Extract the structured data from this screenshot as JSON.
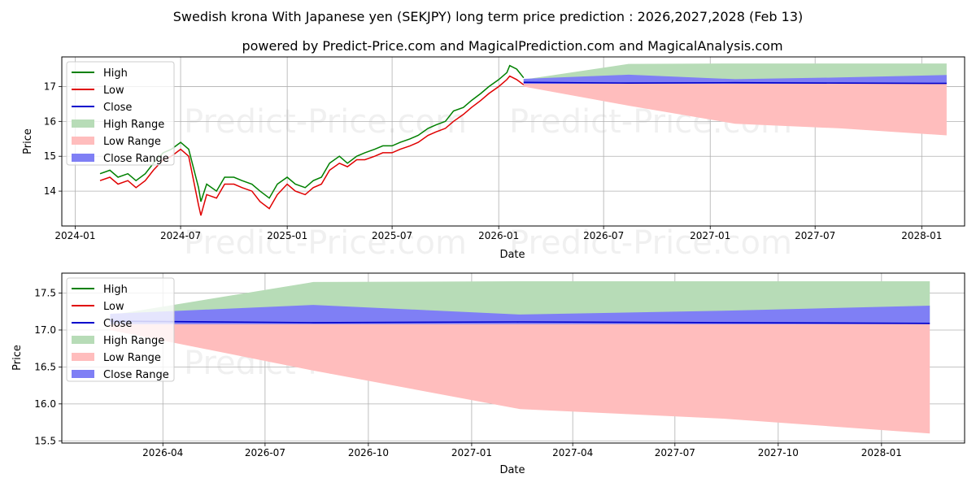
{
  "title": "Swedish krona With Japanese yen (SEKJPY) long term price prediction : 2026,2027,2028 (Feb 13)",
  "subtitle": "powered by Predict-Price.com and MagicalPrediction.com and MagicalAnalysis.com",
  "watermark": "Predict-Price.com",
  "colors": {
    "high": "#008000",
    "low": "#e00000",
    "close": "#0000cc",
    "high_range": "#b7dcb7",
    "low_range": "#ffbdbd",
    "close_range": "#7f7ff5"
  },
  "chart_data": [
    {
      "type": "line",
      "name": "history-and-forecast",
      "xlabel": "Date",
      "ylabel": "Price",
      "xlim": [
        "2023-12-09",
        "2028-03-15"
      ],
      "ylim": [
        13.0,
        17.85
      ],
      "x_ticks": [
        "2024-01",
        "2024-07",
        "2025-01",
        "2025-07",
        "2026-01",
        "2026-07",
        "2027-01",
        "2027-07",
        "2028-01"
      ],
      "x_tick_dates": [
        "2024-01-01",
        "2024-07-01",
        "2025-01-01",
        "2025-07-01",
        "2026-01-01",
        "2026-07-01",
        "2027-01-01",
        "2027-07-01",
        "2028-01-01"
      ],
      "y_ticks": [
        14,
        15,
        16,
        17
      ],
      "grid": true,
      "legend": {
        "position": "top-left",
        "entries": [
          "High",
          "Low",
          "Close",
          "High Range",
          "Low Range",
          "Close Range"
        ]
      },
      "history": {
        "dates": [
          "2024-02-13",
          "2024-03-01",
          "2024-03-15",
          "2024-04-01",
          "2024-04-15",
          "2024-05-01",
          "2024-05-15",
          "2024-06-01",
          "2024-06-15",
          "2024-07-01",
          "2024-07-15",
          "2024-08-01",
          "2024-08-05",
          "2024-08-15",
          "2024-09-01",
          "2024-09-15",
          "2024-10-01",
          "2024-10-15",
          "2024-11-01",
          "2024-11-15",
          "2024-12-01",
          "2024-12-15",
          "2025-01-01",
          "2025-01-15",
          "2025-02-01",
          "2025-02-15",
          "2025-03-01",
          "2025-03-15",
          "2025-04-01",
          "2025-04-15",
          "2025-05-01",
          "2025-05-15",
          "2025-06-01",
          "2025-06-15",
          "2025-07-01",
          "2025-07-15",
          "2025-08-01",
          "2025-08-15",
          "2025-09-01",
          "2025-09-15",
          "2025-10-01",
          "2025-10-15",
          "2025-11-01",
          "2025-11-15",
          "2025-12-01",
          "2025-12-15",
          "2026-01-01",
          "2026-01-15",
          "2026-01-20",
          "2026-02-01",
          "2026-02-13"
        ],
        "high": [
          14.5,
          14.6,
          14.4,
          14.5,
          14.3,
          14.5,
          14.8,
          15.1,
          15.2,
          15.4,
          15.2,
          14.1,
          13.7,
          14.2,
          14.0,
          14.4,
          14.4,
          14.3,
          14.2,
          14.0,
          13.8,
          14.2,
          14.4,
          14.2,
          14.1,
          14.3,
          14.4,
          14.8,
          15.0,
          14.8,
          15.0,
          15.1,
          15.2,
          15.3,
          15.3,
          15.4,
          15.5,
          15.6,
          15.8,
          15.9,
          16.0,
          16.3,
          16.4,
          16.6,
          16.8,
          17.0,
          17.2,
          17.4,
          17.6,
          17.5,
          17.25
        ],
        "low": [
          14.3,
          14.4,
          14.2,
          14.3,
          14.1,
          14.3,
          14.6,
          14.9,
          15.0,
          15.2,
          15.0,
          13.6,
          13.3,
          13.9,
          13.8,
          14.2,
          14.2,
          14.1,
          14.0,
          13.7,
          13.5,
          13.9,
          14.2,
          14.0,
          13.9,
          14.1,
          14.2,
          14.6,
          14.8,
          14.7,
          14.9,
          14.9,
          15.0,
          15.1,
          15.1,
          15.2,
          15.3,
          15.4,
          15.6,
          15.7,
          15.8,
          16.0,
          16.2,
          16.4,
          16.6,
          16.8,
          17.0,
          17.2,
          17.3,
          17.2,
          17.05
        ]
      },
      "forecast": {
        "dates": [
          "2026-02-13",
          "2026-08-13",
          "2027-02-13",
          "2027-08-13",
          "2028-02-13"
        ],
        "close": [
          17.12,
          17.1,
          17.11,
          17.1,
          17.09
        ],
        "close_range_upper": [
          17.22,
          17.34,
          17.21,
          17.26,
          17.33
        ],
        "close_range_lower": [
          17.08,
          17.08,
          17.08,
          17.08,
          17.08
        ],
        "high_range_upper": [
          17.2,
          17.65,
          17.66,
          17.66,
          17.66
        ],
        "low_range_lower": [
          17.0,
          16.45,
          15.93,
          15.8,
          15.6
        ]
      }
    },
    {
      "type": "line",
      "name": "forecast-detail",
      "xlabel": "Date",
      "ylabel": "Price",
      "xlim": [
        "2026-01-01",
        "2028-03-15"
      ],
      "ylim": [
        15.47,
        17.77
      ],
      "x_ticks": [
        "2026-04",
        "2026-07",
        "2026-10",
        "2027-01",
        "2027-04",
        "2027-07",
        "2027-10",
        "2028-01"
      ],
      "x_tick_dates": [
        "2026-04-01",
        "2026-07-01",
        "2026-10-01",
        "2027-01-01",
        "2027-04-01",
        "2027-07-01",
        "2027-10-01",
        "2028-01-01"
      ],
      "y_ticks": [
        15.5,
        16.0,
        16.5,
        17.0,
        17.5
      ],
      "y_tick_labels": [
        "15.5",
        "16.0",
        "16.5",
        "17.0",
        "17.5"
      ],
      "grid": true,
      "legend": {
        "position": "top-left",
        "entries": [
          "High",
          "Low",
          "Close",
          "High Range",
          "Low Range",
          "Close Range"
        ]
      }
    }
  ]
}
